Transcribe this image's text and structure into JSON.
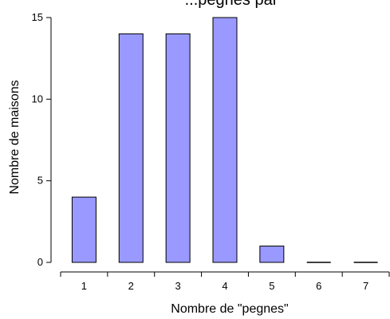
{
  "chart_data": {
    "type": "bar",
    "title": "...pegnes par",
    "xlabel": "Nombre de \"pegnes\"",
    "ylabel": "Nombre de maisons",
    "categories": [
      "1",
      "2",
      "3",
      "4",
      "5",
      "6",
      "7"
    ],
    "values": [
      4,
      14,
      14,
      15,
      1,
      0,
      0
    ],
    "ylim": [
      0,
      15
    ],
    "yticks": [
      0,
      5,
      10,
      15
    ],
    "bar_color": "#9999ff",
    "bar_edge_color": "#000000",
    "grid": false,
    "legend": "none"
  }
}
